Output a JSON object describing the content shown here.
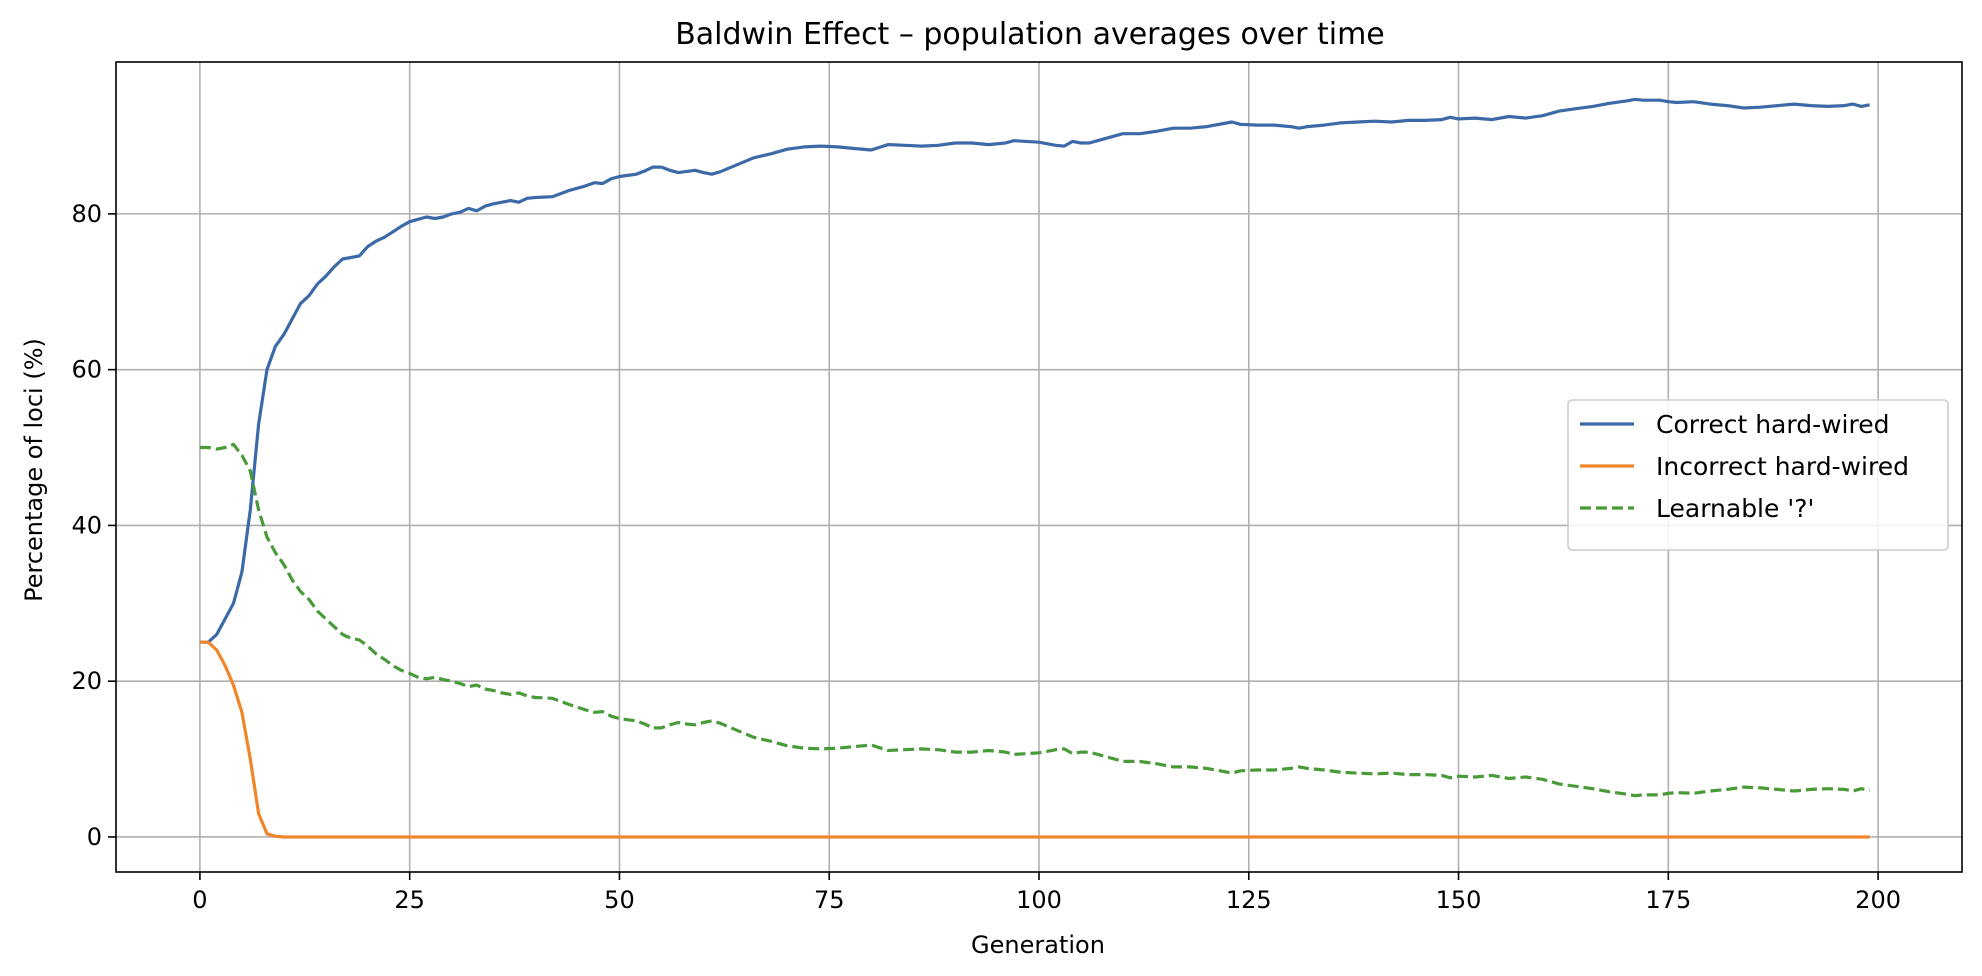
{
  "chart_data": {
    "type": "line",
    "title": "Baldwin Effect – population averages over time",
    "xlabel": "Generation",
    "ylabel": "Percentage of loci (%)",
    "xlim": [
      -10,
      210
    ],
    "ylim": [
      -4.5,
      99.5
    ],
    "xticks": [
      0,
      25,
      50,
      75,
      100,
      125,
      150,
      175,
      200
    ],
    "yticks": [
      0,
      20,
      40,
      60,
      80
    ],
    "grid": true,
    "legend_position": "center-right",
    "series": [
      {
        "name": "Correct hard-wired",
        "color": "#3c6aa8",
        "style": "solid",
        "points": [
          [
            0,
            25
          ],
          [
            1,
            25
          ],
          [
            2,
            26
          ],
          [
            3,
            28
          ],
          [
            4,
            30
          ],
          [
            5,
            34
          ],
          [
            6,
            42
          ],
          [
            7,
            53
          ],
          [
            8,
            60
          ],
          [
            9,
            63
          ],
          [
            10,
            64.5
          ],
          [
            11,
            66.5
          ],
          [
            12,
            68.5
          ],
          [
            13,
            69.5
          ],
          [
            14,
            71
          ],
          [
            15,
            72
          ],
          [
            16,
            73.2
          ],
          [
            17,
            74.2
          ],
          [
            18,
            74.4
          ],
          [
            19,
            74.6
          ],
          [
            20,
            75.8
          ],
          [
            21,
            76.5
          ],
          [
            22,
            77
          ],
          [
            23,
            77.7
          ],
          [
            24,
            78.4
          ],
          [
            25,
            79
          ],
          [
            26,
            79.3
          ],
          [
            27,
            79.6
          ],
          [
            28,
            79.4
          ],
          [
            29,
            79.6
          ],
          [
            30,
            80
          ],
          [
            31,
            80.2
          ],
          [
            32,
            80.7
          ],
          [
            33,
            80.4
          ],
          [
            34,
            81
          ],
          [
            35,
            81.3
          ],
          [
            36,
            81.5
          ],
          [
            37,
            81.7
          ],
          [
            38,
            81.5
          ],
          [
            39,
            82
          ],
          [
            40,
            82.1
          ],
          [
            42,
            82.2
          ],
          [
            44,
            83
          ],
          [
            46,
            83.6
          ],
          [
            47,
            84
          ],
          [
            48,
            83.9
          ],
          [
            49,
            84.5
          ],
          [
            50,
            84.8
          ],
          [
            52,
            85.1
          ],
          [
            53,
            85.5
          ],
          [
            54,
            86
          ],
          [
            55,
            86
          ],
          [
            56,
            85.6
          ],
          [
            57,
            85.3
          ],
          [
            59,
            85.6
          ],
          [
            60,
            85.3
          ],
          [
            61,
            85.1
          ],
          [
            62,
            85.4
          ],
          [
            64,
            86.3
          ],
          [
            66,
            87.2
          ],
          [
            68,
            87.7
          ],
          [
            70,
            88.3
          ],
          [
            72,
            88.6
          ],
          [
            74,
            88.7
          ],
          [
            76,
            88.6
          ],
          [
            78,
            88.4
          ],
          [
            80,
            88.2
          ],
          [
            82,
            88.9
          ],
          [
            84,
            88.8
          ],
          [
            86,
            88.7
          ],
          [
            88,
            88.8
          ],
          [
            90,
            89.1
          ],
          [
            92,
            89.1
          ],
          [
            94,
            88.9
          ],
          [
            96,
            89.1
          ],
          [
            97,
            89.4
          ],
          [
            100,
            89.2
          ],
          [
            101,
            89
          ],
          [
            102,
            88.8
          ],
          [
            103,
            88.7
          ],
          [
            104,
            89.3
          ],
          [
            105,
            89.1
          ],
          [
            106,
            89.1
          ],
          [
            108,
            89.7
          ],
          [
            110,
            90.3
          ],
          [
            112,
            90.3
          ],
          [
            114,
            90.6
          ],
          [
            116,
            91
          ],
          [
            118,
            91
          ],
          [
            120,
            91.2
          ],
          [
            122,
            91.6
          ],
          [
            123,
            91.8
          ],
          [
            124,
            91.5
          ],
          [
            126,
            91.4
          ],
          [
            128,
            91.4
          ],
          [
            130,
            91.2
          ],
          [
            131,
            91
          ],
          [
            132,
            91.2
          ],
          [
            134,
            91.4
          ],
          [
            136,
            91.7
          ],
          [
            138,
            91.8
          ],
          [
            140,
            91.9
          ],
          [
            142,
            91.8
          ],
          [
            144,
            92
          ],
          [
            146,
            92
          ],
          [
            148,
            92.1
          ],
          [
            149,
            92.4
          ],
          [
            150,
            92.2
          ],
          [
            152,
            92.3
          ],
          [
            154,
            92.1
          ],
          [
            156,
            92.5
          ],
          [
            158,
            92.3
          ],
          [
            160,
            92.6
          ],
          [
            162,
            93.2
          ],
          [
            164,
            93.5
          ],
          [
            166,
            93.8
          ],
          [
            168,
            94.2
          ],
          [
            170,
            94.5
          ],
          [
            171,
            94.7
          ],
          [
            172,
            94.6
          ],
          [
            174,
            94.6
          ],
          [
            175,
            94.4
          ],
          [
            176,
            94.3
          ],
          [
            178,
            94.4
          ],
          [
            180,
            94.1
          ],
          [
            182,
            93.9
          ],
          [
            184,
            93.6
          ],
          [
            186,
            93.7
          ],
          [
            188,
            93.9
          ],
          [
            190,
            94.1
          ],
          [
            192,
            93.9
          ],
          [
            194,
            93.8
          ],
          [
            196,
            93.9
          ],
          [
            197,
            94.1
          ],
          [
            198,
            93.8
          ],
          [
            199,
            94
          ]
        ]
      },
      {
        "name": "Incorrect hard-wired",
        "color": "#f0862a",
        "style": "solid",
        "points": [
          [
            0,
            25
          ],
          [
            1,
            25
          ],
          [
            2,
            24
          ],
          [
            3,
            22
          ],
          [
            4,
            19.5
          ],
          [
            5,
            16
          ],
          [
            6,
            10
          ],
          [
            7,
            3
          ],
          [
            8,
            0.4
          ],
          [
            9,
            0.1
          ],
          [
            10,
            0
          ],
          [
            50,
            0
          ],
          [
            100,
            0
          ],
          [
            150,
            0
          ],
          [
            199,
            0
          ]
        ]
      },
      {
        "name": "Learnable '?'",
        "color": "#4a9a3a",
        "style": "dashed",
        "points": [
          [
            0,
            50
          ],
          [
            1,
            50
          ],
          [
            2,
            49.8
          ],
          [
            3,
            50
          ],
          [
            4,
            50.4
          ],
          [
            5,
            49
          ],
          [
            6,
            47
          ],
          [
            7,
            42
          ],
          [
            8,
            38.5
          ],
          [
            9,
            36.5
          ],
          [
            10,
            35
          ],
          [
            11,
            33
          ],
          [
            12,
            31.5
          ],
          [
            13,
            30.5
          ],
          [
            14,
            29
          ],
          [
            15,
            28
          ],
          [
            16,
            27
          ],
          [
            17,
            26
          ],
          [
            18,
            25.5
          ],
          [
            19,
            25.3
          ],
          [
            20,
            24.5
          ],
          [
            21,
            23.5
          ],
          [
            22,
            22.8
          ],
          [
            23,
            22
          ],
          [
            24,
            21.4
          ],
          [
            25,
            21
          ],
          [
            26,
            20.5
          ],
          [
            27,
            20.3
          ],
          [
            28,
            20.5
          ],
          [
            29,
            20.2
          ],
          [
            30,
            20
          ],
          [
            31,
            19.7
          ],
          [
            32,
            19.3
          ],
          [
            33,
            19.5
          ],
          [
            34,
            19
          ],
          [
            35,
            18.8
          ],
          [
            36,
            18.5
          ],
          [
            37,
            18.3
          ],
          [
            38,
            18.5
          ],
          [
            39,
            18.1
          ],
          [
            40,
            17.9
          ],
          [
            42,
            17.8
          ],
          [
            44,
            17
          ],
          [
            46,
            16.3
          ],
          [
            47,
            16
          ],
          [
            48,
            16.1
          ],
          [
            49,
            15.5
          ],
          [
            50,
            15.2
          ],
          [
            52,
            14.9
          ],
          [
            53,
            14.5
          ],
          [
            54,
            14
          ],
          [
            55,
            14
          ],
          [
            56,
            14.4
          ],
          [
            57,
            14.7
          ],
          [
            58,
            14.5
          ],
          [
            59,
            14.4
          ],
          [
            60,
            14.7
          ],
          [
            61,
            14.9
          ],
          [
            62,
            14.6
          ],
          [
            64,
            13.7
          ],
          [
            66,
            12.8
          ],
          [
            68,
            12.3
          ],
          [
            70,
            11.7
          ],
          [
            72,
            11.4
          ],
          [
            74,
            11.3
          ],
          [
            76,
            11.4
          ],
          [
            78,
            11.6
          ],
          [
            80,
            11.8
          ],
          [
            82,
            11.1
          ],
          [
            84,
            11.2
          ],
          [
            86,
            11.3
          ],
          [
            88,
            11.2
          ],
          [
            90,
            10.9
          ],
          [
            92,
            10.9
          ],
          [
            94,
            11.1
          ],
          [
            96,
            10.9
          ],
          [
            97,
            10.6
          ],
          [
            100,
            10.8
          ],
          [
            101,
            11
          ],
          [
            102,
            11.2
          ],
          [
            103,
            11.3
          ],
          [
            104,
            10.7
          ],
          [
            105,
            10.9
          ],
          [
            106,
            10.9
          ],
          [
            108,
            10.3
          ],
          [
            110,
            9.7
          ],
          [
            112,
            9.7
          ],
          [
            114,
            9.4
          ],
          [
            116,
            9
          ],
          [
            118,
            9
          ],
          [
            120,
            8.8
          ],
          [
            122,
            8.4
          ],
          [
            123,
            8.2
          ],
          [
            124,
            8.5
          ],
          [
            126,
            8.6
          ],
          [
            128,
            8.6
          ],
          [
            130,
            8.8
          ],
          [
            131,
            9
          ],
          [
            132,
            8.8
          ],
          [
            134,
            8.6
          ],
          [
            136,
            8.3
          ],
          [
            138,
            8.2
          ],
          [
            140,
            8.1
          ],
          [
            142,
            8.2
          ],
          [
            144,
            8
          ],
          [
            146,
            8
          ],
          [
            148,
            7.9
          ],
          [
            149,
            7.6
          ],
          [
            150,
            7.8
          ],
          [
            152,
            7.7
          ],
          [
            154,
            7.9
          ],
          [
            156,
            7.5
          ],
          [
            158,
            7.7
          ],
          [
            160,
            7.4
          ],
          [
            162,
            6.8
          ],
          [
            164,
            6.5
          ],
          [
            166,
            6.2
          ],
          [
            168,
            5.8
          ],
          [
            170,
            5.5
          ],
          [
            171,
            5.3
          ],
          [
            172,
            5.4
          ],
          [
            174,
            5.4
          ],
          [
            175,
            5.6
          ],
          [
            176,
            5.7
          ],
          [
            178,
            5.6
          ],
          [
            180,
            5.9
          ],
          [
            182,
            6.1
          ],
          [
            184,
            6.4
          ],
          [
            186,
            6.3
          ],
          [
            188,
            6.1
          ],
          [
            190,
            5.9
          ],
          [
            192,
            6.1
          ],
          [
            194,
            6.2
          ],
          [
            196,
            6.1
          ],
          [
            197,
            5.9
          ],
          [
            198,
            6.2
          ],
          [
            199,
            6
          ]
        ]
      }
    ]
  }
}
